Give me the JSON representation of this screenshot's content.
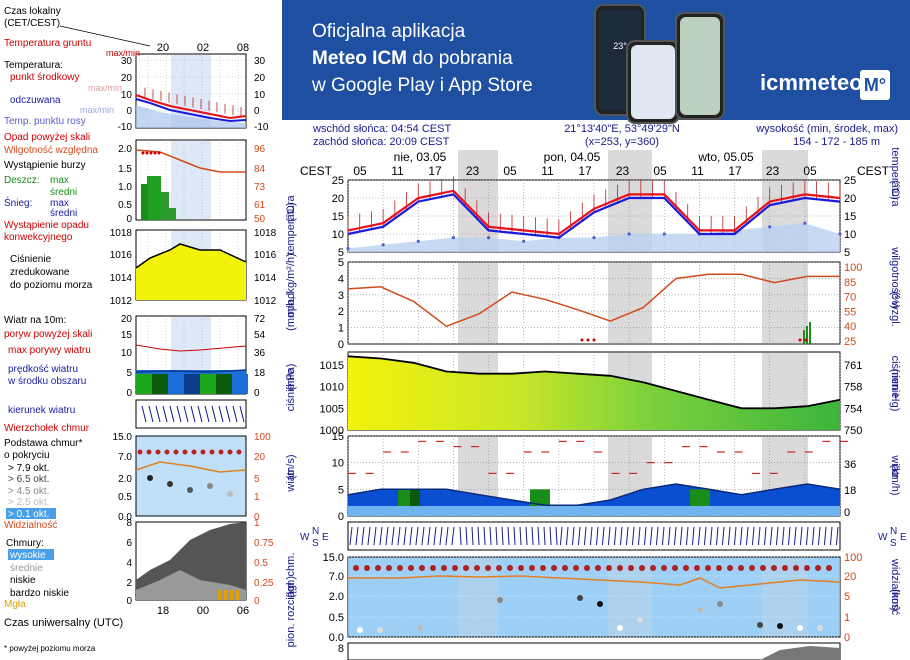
{
  "banner": {
    "line1": "Oficjalna aplikacja",
    "line2_bold": "Meteo ICM",
    "line2_rest": " do pobrania",
    "line3": "w Google Play i App Store",
    "logo": "icmmeteo",
    "logo_mark": "M°",
    "phone_temp": "23°"
  },
  "colors": {
    "banner": "#1f4fa0",
    "temp_red": "#e8101a",
    "temp_blue": "#1a1adc",
    "humidity": "#d24a1c",
    "pressure_yellow": "#f2f20a",
    "pressure_green": "#7ed23c",
    "wind_bg": "#0a4fd2",
    "axis_label": "#1a1a8c",
    "day_shade": "#dadada"
  },
  "legend": {
    "time_local": "Czas lokalny\n(CET/CEST)",
    "time_local_ticks": [
      "20",
      "02",
      "08"
    ],
    "time_utc": "Czas uniwersalny (UTC)",
    "time_utc_ticks": [
      "18",
      "00",
      "06"
    ],
    "ground_temp": "Temperatura gruntu",
    "ground_temp_sub": "max/min",
    "temperature": "Temperatura:",
    "center_point": "punkt środkowy",
    "center_sub": "max/min",
    "feels_like": "odczuwana",
    "feels_sub": "max/min",
    "dew_point": "Temp. punktu rosy",
    "temp_ticks": [
      "30",
      "20",
      "10",
      "0",
      "-10"
    ],
    "precip_above": "Opad powyżej skali",
    "humidity": "Wilgotność względna",
    "storm": "Wystąpienie burzy",
    "rain": "Deszcz:",
    "rain_max": "max",
    "rain_mean": "średni",
    "snow": "Śnieg:",
    "snow_max": "max",
    "snow_mean": "średni",
    "convective": "Wystąpienie opadu\nkonwekcyjnego",
    "precip_ticks": [
      "2.0",
      "1.5",
      "1.0",
      "0.5",
      "0"
    ],
    "hum_ticks": [
      "96",
      "84",
      "73",
      "61",
      "50"
    ],
    "pressure": "Ciśnienie\nzredukowane\ndo poziomu morza",
    "pressure_ticks": [
      "1018",
      "1016",
      "1014",
      "1012"
    ],
    "wind_10m": "Wiatr na 10m:",
    "gust_above": "poryw powyżej skali",
    "max_gust": "max porywy wiatru",
    "mean_wind": "prędkość wiatru\nw środku obszaru",
    "wind_ticks_left": [
      "20",
      "15",
      "10",
      "5",
      "0"
    ],
    "wind_ticks_right": [
      "72",
      "54",
      "36",
      "18",
      "0"
    ],
    "wind_dir": "kierunek wiatru",
    "cloud_top": "Wierzchołek chmur",
    "cloud_base": "Podstawa chmur*\no pokryciu",
    "okt79": "> 7.9 okt.",
    "okt65": "> 6.5 okt.",
    "okt45": "> 4.5 okt.",
    "okt25": "> 2.5 okt.",
    "okt01": "> 0.1 okt.",
    "visibility": "Widzialność",
    "cloudbase_ticks": [
      "15.0",
      "7.0",
      "2.0",
      "0.5",
      "0.0"
    ],
    "vis_ticks": [
      "100",
      "20",
      "5",
      "1",
      "0"
    ],
    "clouds": "Chmury:",
    "high": "wysokie",
    "mid": "średnie",
    "low": "niskie",
    "very_low": "bardzo niskie",
    "fog": "Mgła",
    "cloud_ticks": [
      "8",
      "6",
      "4",
      "2",
      "0"
    ],
    "cloud_frac_ticks": [
      "1",
      "0.75",
      "0.5",
      "0.25",
      "0"
    ],
    "footnote": "* powyżej poziomu morza"
  },
  "header": {
    "sunrise": "wschód słońca: 04:54 CEST",
    "sunset": "zachód słońca: 20:09 CEST",
    "coords": "21°13'40\"E, 53°49'29\"N",
    "grid": "(x=253,  y=360)",
    "height_label": "wysokość (min, środek, max)",
    "height_values": "154 - 172 - 185 m",
    "tz": "CEST"
  },
  "main": {
    "days": [
      "nie, 03.05",
      "pon, 04.05",
      "wto, 05.05"
    ],
    "hour_labels": [
      "05",
      "11",
      "17",
      "23",
      "05",
      "11",
      "17",
      "23",
      "05",
      "11",
      "17",
      "23",
      "05"
    ],
    "temp_label_left": "temperatura\n(°C)",
    "temp_label_right": "(°C)\ntemperatura",
    "temp_ticks": [
      "25",
      "20",
      "15",
      "10",
      "5"
    ],
    "precip_label_left": "opad\n(mm/h, kg/m²/h)",
    "hum_label_right": "(%)\nwilgotność wzgl.",
    "precip_ticks": [
      "5",
      "4",
      "3",
      "2",
      "1",
      "0"
    ],
    "hum_ticks": [
      "100",
      "85",
      "70",
      "55",
      "40",
      "25"
    ],
    "pressure_label_left": "ciśnienie\n(hPa)",
    "pressure_label_right": "(mm Hg)\nciśnienie",
    "pressure_ticks": [
      "1015",
      "1010",
      "1005",
      "1000"
    ],
    "pressure_mm_ticks": [
      "761",
      "758",
      "754",
      "750"
    ],
    "wind_label_left": "wiatr\n(m/s)",
    "wind_label_right": "(km/h)\nwiatr",
    "wind_ticks": [
      "15",
      "10",
      "5",
      "0"
    ],
    "wind_kmh_ticks": [
      "36",
      "18",
      "0"
    ],
    "dir_label": "W N S E",
    "cloud_label_left": "pion. rozciągł. chm.\n(km)",
    "vis_label_right": "(km)\nwidzialność",
    "cloud_ticks": [
      "15.0",
      "7.0",
      "2.0",
      "0.5",
      "0.0"
    ],
    "vis_ticks": [
      "100",
      "20",
      "5",
      "1",
      "0"
    ],
    "bottom_tick": "8"
  },
  "chart_data": [
    {
      "type": "line",
      "name": "temperature",
      "x_hours": [
        0,
        6,
        12,
        18,
        24,
        30,
        36,
        42,
        48,
        54,
        60,
        66,
        72,
        78,
        84
      ],
      "series": [
        {
          "name": "punkt środkowy",
          "values": [
            11,
            13,
            20,
            22,
            12,
            11,
            10,
            17,
            21,
            21,
            11,
            11,
            19,
            21,
            20
          ]
        },
        {
          "name": "odczuwana",
          "values": [
            10,
            12,
            19,
            21,
            11,
            10,
            9,
            16,
            20,
            20,
            10,
            10,
            18,
            20,
            19
          ]
        },
        {
          "name": "Temp. punktu rosy",
          "values": [
            6,
            7,
            8,
            9,
            9,
            8,
            9,
            9,
            10,
            10,
            10,
            11,
            12,
            13,
            10
          ]
        }
      ],
      "ylim": [
        5,
        25
      ]
    },
    {
      "type": "line",
      "name": "relative humidity",
      "series": [
        {
          "name": "Wilgotność względna",
          "values": [
            78,
            80,
            66,
            42,
            54,
            75,
            68,
            58,
            47,
            60,
            88,
            92,
            92,
            84,
            90,
            90
          ]
        }
      ],
      "ylim": [
        25,
        100
      ]
    },
    {
      "type": "area",
      "name": "pressure",
      "series": [
        {
          "name": "ciśnienie",
          "values": [
            1017,
            1016.5,
            1015.5,
            1013.5,
            1013,
            1013,
            1013.5,
            1013,
            1012.5,
            1011,
            1009,
            1007,
            1005,
            1005,
            1005.5,
            1007
          ]
        }
      ],
      "ylim": [
        1000,
        1018
      ]
    },
    {
      "type": "line",
      "name": "wind",
      "series": [
        {
          "name": "max porywy wiatru",
          "values": [
            8,
            12,
            14,
            13,
            8,
            12,
            14,
            12,
            8,
            10,
            13,
            12,
            8,
            12,
            14,
            12
          ]
        },
        {
          "name": "prędkość wiatru",
          "values": [
            4,
            5,
            5,
            5,
            4,
            3,
            2,
            2,
            3,
            5,
            6,
            5,
            4,
            5,
            6,
            5
          ]
        }
      ],
      "ylim": [
        0,
        15
      ]
    }
  ]
}
